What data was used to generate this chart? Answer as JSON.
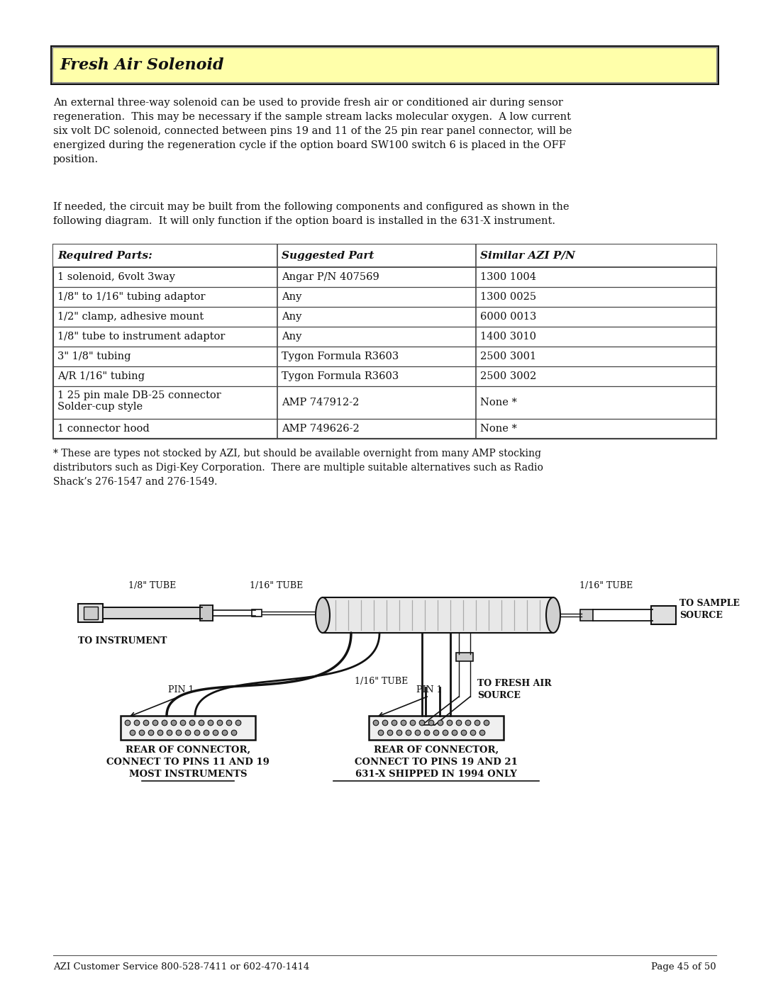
{
  "page_bg": "#ffffff",
  "header_bg": "#ffffaa",
  "header_border": "#111111",
  "header_text": "Fresh Air Solenoid",
  "para1": "An external three-way solenoid can be used to provide fresh air or conditioned air during sensor\nregeneration.  This may be necessary if the sample stream lacks molecular oxygen.  A low current\nsix volt DC solenoid, connected between pins 19 and 11 of the 25 pin rear panel connector, will be\nenergized during the regeneration cycle if the option board SW100 switch 6 is placed in the OFF\nposition.",
  "para2": "If needed, the circuit may be built from the following components and configured as shown in the\nfollowing diagram.  It will only function if the option board is installed in the 631-X instrument.",
  "table_headers": [
    "Required Parts:",
    "Suggested Part",
    "Similar AZI P/N"
  ],
  "table_rows": [
    [
      "1 solenoid, 6volt 3way",
      "Angar P/N 407569",
      "1300 1004"
    ],
    [
      "1/8\" to 1/16\" tubing adaptor",
      "Any",
      "1300 0025"
    ],
    [
      "1/2\" clamp, adhesive mount",
      "Any",
      "6000 0013"
    ],
    [
      "1/8\" tube to instrument adaptor",
      "Any",
      "1400 3010"
    ],
    [
      "3\" 1/8\" tubing",
      "Tygon Formula R3603",
      "2500 3001"
    ],
    [
      "A/R 1/16\" tubing",
      "Tygon Formula R3603",
      "2500 3002"
    ],
    [
      "1 25 pin male DB-25 connector\nSolder-cup style",
      "AMP 747912-2",
      "None *"
    ],
    [
      "1 connector hood",
      "AMP 749626-2",
      "None *"
    ]
  ],
  "footnote": "* These are types not stocked by AZI, but should be available overnight from many AMP stocking\ndistributors such as Digi-Key Corporation.  There are multiple suitable alternatives such as Radio\nShack’s 276-1547 and 276-1549.",
  "footer_left": "AZI Customer Service 800-528-7411 or 602-470-1414",
  "footer_right": "Page 45 of 50",
  "text_color": "#111111",
  "table_line_color": "#444444"
}
